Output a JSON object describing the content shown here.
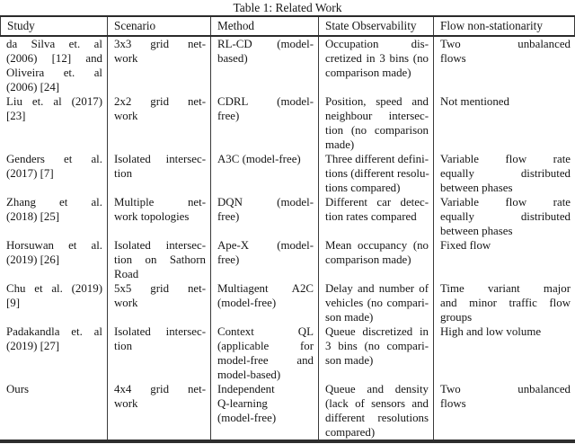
{
  "title": "Table 1: Related Work",
  "table": {
    "columns": [
      "Study",
      "Scenario",
      "Method",
      "State Observability",
      "Flow non-stationarity"
    ],
    "rows": [
      {
        "study": [
          "da Silva et. al",
          "(2006) [12] and",
          "Oliveira et. al",
          "(2006) [24]"
        ],
        "scenario": [
          "3x3 grid net-",
          "work"
        ],
        "method": [
          "RL-CD (model-",
          "based)"
        ],
        "state_observability": [
          "Occupation dis-",
          "cretized in 3 bins (no",
          "comparison made)"
        ],
        "flow_non_stationarity": [
          "Two unbalanced",
          "flows"
        ]
      },
      {
        "study": [
          "Liu et. al (2017)",
          "[23]"
        ],
        "scenario": [
          "2x2 grid net-",
          "work"
        ],
        "method": [
          "CDRL (model-",
          "free)"
        ],
        "state_observability": [
          "Position, speed and",
          "neighbour intersec-",
          "tion (no comparison",
          "made)"
        ],
        "flow_non_stationarity": [
          "Not mentioned"
        ]
      },
      {
        "study": [
          "Genders et al.",
          "(2017) [7]"
        ],
        "scenario": [
          "Isolated intersec-",
          "tion"
        ],
        "method": [
          "A3C (model-free)"
        ],
        "state_observability": [
          "Three different defini-",
          "tions (different resolu-",
          "tions compared)"
        ],
        "flow_non_stationarity": [
          "Variable flow rate",
          "equally distributed",
          "between phases"
        ]
      },
      {
        "study": [
          "Zhang et al.",
          "(2018) [25]"
        ],
        "scenario": [
          "Multiple net-",
          "work topologies"
        ],
        "method": [
          "DQN (model-",
          "free)"
        ],
        "state_observability": [
          "Different car detec-",
          "tion rates compared"
        ],
        "flow_non_stationarity": [
          "Variable flow rate",
          "equally distributed",
          "between phases"
        ]
      },
      {
        "study": [
          "Horsuwan et al.",
          "(2019) [26]"
        ],
        "scenario": [
          "Isolated intersec-",
          "tion on Sathorn",
          "Road"
        ],
        "method": [
          "Ape-X (model-",
          "free)"
        ],
        "state_observability": [
          "Mean occupancy (no",
          "comparison made)"
        ],
        "flow_non_stationarity": [
          "Fixed flow"
        ]
      },
      {
        "study": [
          "Chu et al. (2019)",
          "[9]"
        ],
        "scenario": [
          "5x5 grid net-",
          "work"
        ],
        "method": [
          "Multiagent A2C",
          "(model-free)"
        ],
        "state_observability": [
          "Delay and number of",
          "vehicles (no compari-",
          "son made)"
        ],
        "flow_non_stationarity": [
          "Time variant major",
          "and minor traffic flow",
          "groups"
        ]
      },
      {
        "study": [
          "Padakandla et. al",
          "(2019) [27]"
        ],
        "scenario": [
          "Isolated intersec-",
          "tion"
        ],
        "method": [
          "Context QL",
          "(applicable for",
          "model-free and",
          "model-based)"
        ],
        "state_observability": [
          "Queue discretized in",
          "3 bins (no compari-",
          "son made)"
        ],
        "flow_non_stationarity": [
          "High and low volume"
        ]
      },
      {
        "study": [
          "Ours"
        ],
        "scenario": [
          "4x4 grid net-",
          "work"
        ],
        "method": [
          "Independent",
          "Q-learning",
          "(model-free)"
        ],
        "state_observability": [
          "Queue and density",
          "(lack of sensors and",
          "different resolutions",
          "compared)"
        ],
        "flow_non_stationarity": [
          "Two unbalanced",
          "flows"
        ]
      }
    ]
  }
}
